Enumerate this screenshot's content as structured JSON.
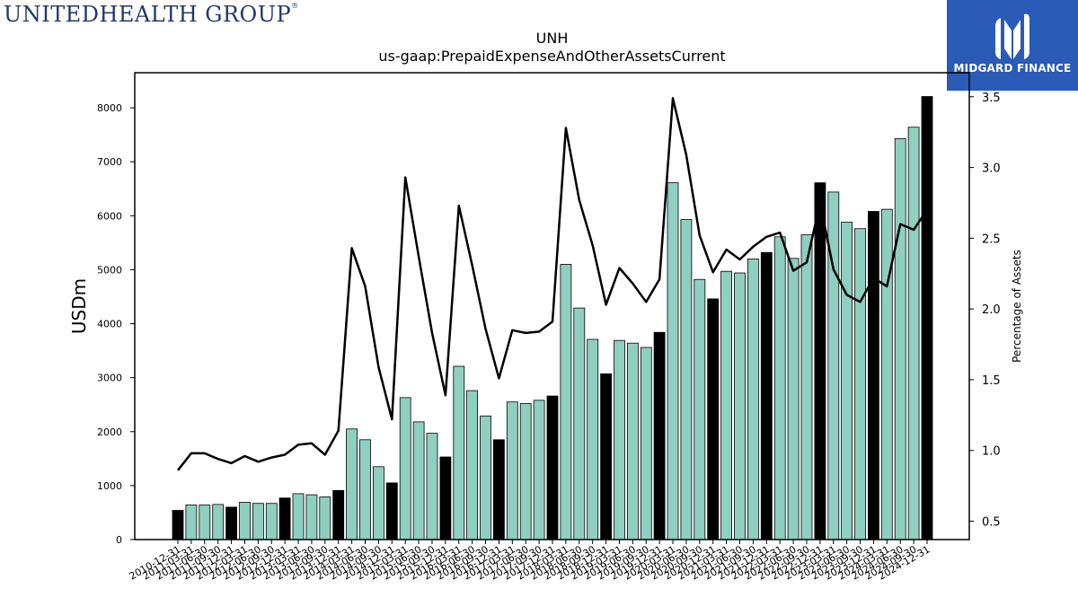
{
  "branding": {
    "left_logo_text": "UNITEDHEALTH GROUP",
    "right_logo_text": "MIDGARD FINANCE",
    "right_logo_bg": "#2a5bb7"
  },
  "chart_data": {
    "type": "bar",
    "title": "UNH",
    "subtitle": "us-gaap:PrepaidExpenseAndOtherAssetsCurrent",
    "ylabel": "USDm",
    "y2label": "Percentage of Assets",
    "ylim": [
      0,
      8650
    ],
    "y2lim": [
      0.37,
      3.67
    ],
    "yticks": [
      0,
      1000,
      2000,
      3000,
      4000,
      5000,
      6000,
      7000,
      8000
    ],
    "y2ticks": [
      0.5,
      1.0,
      1.5,
      2.0,
      2.5,
      3.0,
      3.5
    ],
    "colors": {
      "annual_bar": "#000000",
      "quarter_bar": "#8ecfc0",
      "line": "#000000"
    },
    "categories": [
      "2010-12-31",
      "2011-03-31",
      "2011-06-30",
      "2011-09-30",
      "2011-12-31",
      "2012-03-31",
      "2012-06-30",
      "2012-09-30",
      "2012-12-31",
      "2013-03-31",
      "2013-06-30",
      "2013-09-30",
      "2013-12-31",
      "2014-03-31",
      "2014-06-30",
      "2014-09-30",
      "2014-12-31",
      "2015-03-31",
      "2015-06-30",
      "2015-09-30",
      "2015-12-31",
      "2016-03-31",
      "2016-06-30",
      "2016-09-30",
      "2016-12-31",
      "2017-03-31",
      "2017-06-30",
      "2017-09-30",
      "2017-12-31",
      "2018-03-31",
      "2018-06-30",
      "2018-09-30",
      "2018-12-31",
      "2019-03-31",
      "2019-06-30",
      "2019-09-30",
      "2019-12-31",
      "2020-03-31",
      "2020-06-30",
      "2020-09-30",
      "2020-12-31",
      "2021-03-31",
      "2021-06-30",
      "2021-09-30",
      "2021-12-31",
      "2022-03-31",
      "2022-06-30",
      "2022-09-30",
      "2022-12-31",
      "2023-03-31",
      "2023-06-30",
      "2023-09-30",
      "2023-12-31",
      "2024-03-31",
      "2024-06-30",
      "2024-09-30",
      "2024-12-31"
    ],
    "series": [
      {
        "kind": "bar",
        "values": [
          540,
          640,
          640,
          650,
          600,
          690,
          670,
          670,
          770,
          850,
          830,
          790,
          910,
          2050,
          1850,
          1350,
          1050,
          2630,
          2180,
          1970,
          1530,
          3210,
          2760,
          2290,
          1850,
          2550,
          2520,
          2580,
          2660,
          5100,
          4290,
          3710,
          3070,
          3690,
          3640,
          3560,
          3840,
          6610,
          5930,
          4820,
          4460,
          4970,
          4940,
          5200,
          5320,
          5610,
          5210,
          5650,
          6610,
          6440,
          5880,
          5760,
          6080,
          6120,
          7430,
          7640,
          8210
        ],
        "annual": [
          true,
          false,
          false,
          false,
          true,
          false,
          false,
          false,
          true,
          false,
          false,
          false,
          true,
          false,
          false,
          false,
          true,
          false,
          false,
          false,
          true,
          false,
          false,
          false,
          true,
          false,
          false,
          false,
          true,
          false,
          false,
          false,
          true,
          false,
          false,
          false,
          true,
          false,
          false,
          false,
          true,
          false,
          false,
          false,
          true,
          false,
          false,
          false,
          true,
          false,
          false,
          false,
          true,
          false,
          false,
          false,
          true
        ]
      },
      {
        "kind": "line",
        "axis": "right",
        "values": [
          0.86,
          0.98,
          0.98,
          0.94,
          0.91,
          0.96,
          0.92,
          0.95,
          0.97,
          1.04,
          1.05,
          0.97,
          1.14,
          2.43,
          2.16,
          1.59,
          1.22,
          2.93,
          2.37,
          1.83,
          1.39,
          2.73,
          2.31,
          1.86,
          1.51,
          1.85,
          1.83,
          1.84,
          1.91,
          3.28,
          2.77,
          2.45,
          2.03,
          2.29,
          2.18,
          2.05,
          2.21,
          3.49,
          3.09,
          2.52,
          2.26,
          2.42,
          2.35,
          2.44,
          2.51,
          2.54,
          2.27,
          2.33,
          2.75,
          2.28,
          2.1,
          2.05,
          2.22,
          2.16,
          2.6,
          2.56,
          2.7
        ]
      }
    ]
  }
}
